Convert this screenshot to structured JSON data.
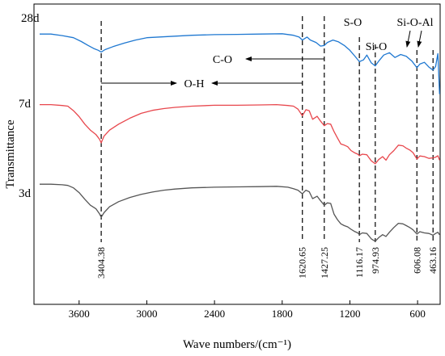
{
  "chart_data": {
    "type": "line",
    "title": "",
    "xlabel": "Wave numbers/(cm⁻¹)",
    "ylabel": "Transmittance",
    "xlim": [
      4000,
      400
    ],
    "x_reversed": true,
    "x_ticks": [
      3600,
      3000,
      2400,
      1800,
      1200,
      600
    ],
    "x_tick_labels": [
      "3600",
      "3000",
      "2400",
      "1800",
      "1200",
      "600"
    ],
    "y_ticks_shown": false,
    "grid": false,
    "legend": "none",
    "series": [
      {
        "name": "28d",
        "color": "#1f78d1",
        "x": [
          3950,
          3850,
          3750,
          3650,
          3580,
          3520,
          3470,
          3430,
          3404,
          3370,
          3300,
          3200,
          3100,
          3000,
          2800,
          2600,
          2400,
          2200,
          2000,
          1800,
          1700,
          1650,
          1621,
          1580,
          1550,
          1500,
          1460,
          1427,
          1400,
          1350,
          1300,
          1250,
          1200,
          1150,
          1116,
          1080,
          1050,
          1010,
          975,
          940,
          900,
          850,
          800,
          750,
          700,
          650,
          606,
          580,
          540,
          500,
          463,
          440,
          420,
          405
        ],
        "y": [
          0.9,
          0.9,
          0.895,
          0.888,
          0.875,
          0.862,
          0.852,
          0.846,
          0.84,
          0.848,
          0.858,
          0.87,
          0.88,
          0.888,
          0.892,
          0.896,
          0.898,
          0.899,
          0.9,
          0.901,
          0.896,
          0.89,
          0.88,
          0.89,
          0.88,
          0.872,
          0.86,
          0.862,
          0.872,
          0.88,
          0.874,
          0.862,
          0.846,
          0.824,
          0.808,
          0.814,
          0.83,
          0.804,
          0.794,
          0.812,
          0.83,
          0.838,
          0.822,
          0.832,
          0.826,
          0.81,
          0.788,
          0.8,
          0.806,
          0.79,
          0.78,
          0.792,
          0.835,
          0.7
        ]
      },
      {
        "name": "7d",
        "color": "#e8474d",
        "x": [
          3950,
          3850,
          3750,
          3700,
          3650,
          3600,
          3550,
          3500,
          3450,
          3420,
          3404,
          3380,
          3330,
          3250,
          3150,
          3050,
          2950,
          2850,
          2750,
          2600,
          2400,
          2200,
          2000,
          1850,
          1750,
          1700,
          1660,
          1621,
          1590,
          1560,
          1530,
          1490,
          1460,
          1427,
          1400,
          1370,
          1340,
          1310,
          1280,
          1250,
          1220,
          1190,
          1160,
          1130,
          1116,
          1090,
          1050,
          1010,
          975,
          945,
          910,
          880,
          850,
          810,
          770,
          730,
          700,
          670,
          640,
          606,
          580,
          540,
          500,
          463,
          440,
          420,
          405
        ],
        "y": [
          0.665,
          0.665,
          0.662,
          0.66,
          0.645,
          0.625,
          0.6,
          0.58,
          0.565,
          0.55,
          0.538,
          0.56,
          0.58,
          0.6,
          0.62,
          0.636,
          0.646,
          0.652,
          0.656,
          0.66,
          0.663,
          0.663,
          0.664,
          0.665,
          0.662,
          0.66,
          0.65,
          0.628,
          0.648,
          0.645,
          0.616,
          0.626,
          0.61,
          0.595,
          0.602,
          0.6,
          0.575,
          0.554,
          0.534,
          0.53,
          0.525,
          0.512,
          0.505,
          0.5,
          0.495,
          0.5,
          0.498,
          0.478,
          0.468,
          0.482,
          0.492,
          0.48,
          0.498,
          0.512,
          0.53,
          0.528,
          0.52,
          0.514,
          0.505,
          0.484,
          0.494,
          0.492,
          0.486,
          0.488,
          0.49,
          0.495,
          0.48
        ]
      },
      {
        "name": "3d",
        "color": "#555555",
        "x": [
          3950,
          3850,
          3750,
          3700,
          3650,
          3600,
          3550,
          3500,
          3450,
          3420,
          3404,
          3380,
          3330,
          3250,
          3150,
          3050,
          2950,
          2850,
          2750,
          2600,
          2400,
          2200,
          2000,
          1850,
          1750,
          1700,
          1660,
          1621,
          1590,
          1560,
          1530,
          1490,
          1460,
          1427,
          1400,
          1370,
          1340,
          1310,
          1280,
          1250,
          1220,
          1190,
          1160,
          1130,
          1116,
          1090,
          1050,
          1010,
          975,
          945,
          910,
          880,
          850,
          810,
          770,
          730,
          700,
          670,
          640,
          606,
          580,
          540,
          500,
          463,
          440,
          420,
          405
        ],
        "y": [
          0.4,
          0.4,
          0.398,
          0.396,
          0.388,
          0.372,
          0.35,
          0.33,
          0.318,
          0.302,
          0.29,
          0.305,
          0.325,
          0.342,
          0.356,
          0.366,
          0.374,
          0.38,
          0.384,
          0.388,
          0.39,
          0.391,
          0.392,
          0.393,
          0.39,
          0.385,
          0.38,
          0.368,
          0.38,
          0.375,
          0.352,
          0.36,
          0.345,
          0.33,
          0.338,
          0.336,
          0.3,
          0.282,
          0.268,
          0.262,
          0.258,
          0.25,
          0.243,
          0.238,
          0.232,
          0.238,
          0.236,
          0.218,
          0.21,
          0.222,
          0.232,
          0.226,
          0.24,
          0.256,
          0.27,
          0.268,
          0.262,
          0.256,
          0.248,
          0.234,
          0.242,
          0.238,
          0.236,
          0.23,
          0.236,
          0.24,
          0.232
        ]
      }
    ],
    "peaks": [
      {
        "x": 3404,
        "label": "3404.38"
      },
      {
        "x": 1621,
        "label": "1620.65"
      },
      {
        "x": 1427,
        "label": "1427.25"
      },
      {
        "x": 1116,
        "label": "1116.17"
      },
      {
        "x": 975,
        "label": "974.93"
      },
      {
        "x": 606,
        "label": "606.08"
      },
      {
        "x": 463,
        "label": "463.16"
      }
    ],
    "band_labels": [
      {
        "text": "S-O",
        "at_x": 1116
      },
      {
        "text": "Si-O",
        "at_x": 975
      },
      {
        "text": "Si-O-Al",
        "at_x": 606
      },
      {
        "text": "C-O",
        "from_x": 1427,
        "to_x": 1650,
        "arrow": "left"
      },
      {
        "text": "O-H",
        "from_x": 3404,
        "to_x": 1621,
        "arrow": "both-in"
      }
    ]
  }
}
